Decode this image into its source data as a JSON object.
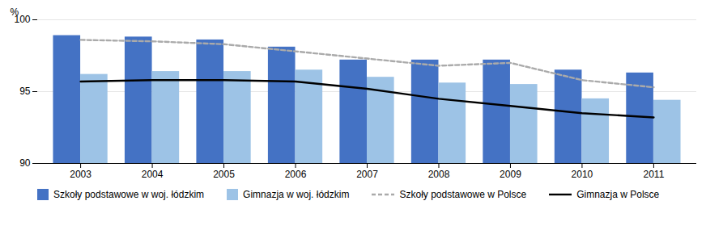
{
  "chart_data": {
    "type": "bar",
    "categories": [
      "2003",
      "2004",
      "2005",
      "2006",
      "2007",
      "2008",
      "2009",
      "2010",
      "2011"
    ],
    "series": [
      {
        "name": "Szkoły podstawowe w woj. łódzkim",
        "type": "bar",
        "color": "#4472C4",
        "values": [
          98.9,
          98.8,
          98.6,
          98.1,
          97.2,
          97.2,
          97.2,
          96.5,
          96.3
        ]
      },
      {
        "name": "Gimnazja w woj. łódzkim",
        "type": "bar",
        "color": "#9DC3E6",
        "values": [
          96.2,
          96.4,
          96.4,
          96.5,
          96.0,
          95.6,
          95.5,
          94.5,
          94.4
        ]
      },
      {
        "name": "Szkoły podstawowe w Polsce",
        "type": "line",
        "line_style": "dashed",
        "color": "#AAAAAA",
        "values": [
          98.6,
          98.5,
          98.3,
          97.8,
          97.3,
          96.8,
          97.0,
          95.8,
          95.3
        ]
      },
      {
        "name": "Gimnazja w Polsce",
        "type": "line",
        "line_style": "solid",
        "color": "#000000",
        "values": [
          95.7,
          95.8,
          95.8,
          95.7,
          95.2,
          94.5,
          94.0,
          93.5,
          93.2
        ]
      }
    ],
    "ylabel": "%",
    "ylim": [
      90,
      100
    ],
    "yticks": [
      90,
      95,
      100
    ],
    "grid": true,
    "legend": "bottom"
  }
}
